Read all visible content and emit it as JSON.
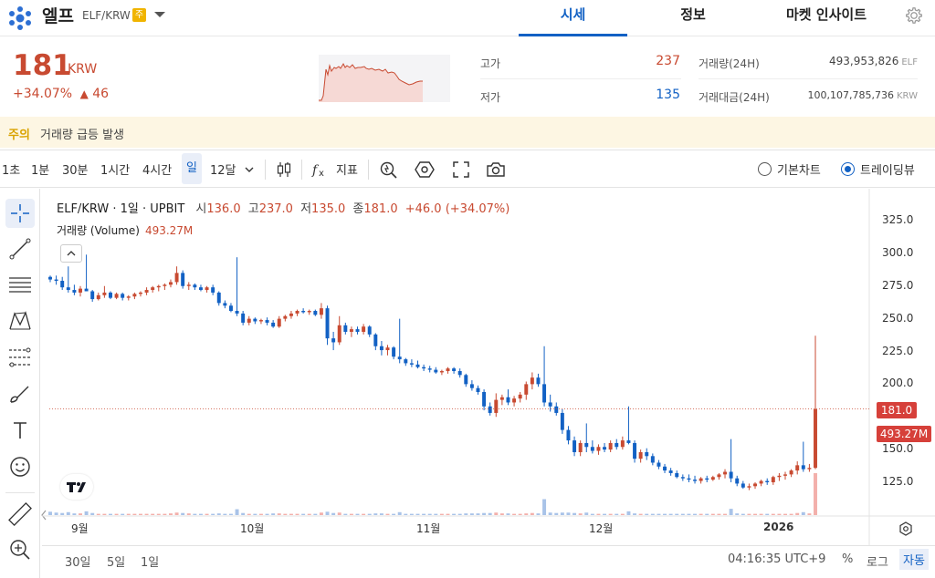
{
  "header": {
    "coin_name": "엘프",
    "pair": "ELF/KRW",
    "warning_badge": "주",
    "tabs": [
      {
        "label": "시세",
        "active": true
      },
      {
        "label": "정보",
        "active": false
      },
      {
        "label": "마켓 인사이트",
        "active": false
      }
    ],
    "icons": {
      "logo": "elf-logo-icon",
      "dropdown": "chevron-down-icon",
      "settings": "gear-icon"
    }
  },
  "summary": {
    "price": "181",
    "unit": "KRW",
    "change_pct": "+34.07%",
    "change_abs": "46",
    "change_arrow": "▲",
    "high_label": "고가",
    "high_value": "237",
    "low_label": "저가",
    "low_value": "135",
    "volume_label": "거래량(24H)",
    "volume_value": "493,953,826",
    "volume_unit": "ELF",
    "amount_label": "거래대금(24H)",
    "amount_value": "100,107,785,736",
    "amount_unit": "KRW",
    "colors": {
      "up": "#c84a31",
      "down": "#1261c4"
    }
  },
  "alert": {
    "tag": "주의",
    "text": "거래량 급등 발생"
  },
  "toolbar": {
    "intervals": [
      "1초",
      "1분",
      "30분",
      "1시간",
      "4시간",
      "일",
      "12달"
    ],
    "active_interval": "일",
    "indicator_label": "지표",
    "view_basic_label": "기본차트",
    "view_trading_label": "트레이딩뷰",
    "selected_view": "트레이딩뷰"
  },
  "drawing_tools": [
    "crosshair-icon",
    "trend-line-icon",
    "horizontal-lines-icon",
    "pattern-icon",
    "fib-icon",
    "brush-icon",
    "text-icon",
    "emoji-icon",
    "ruler-icon",
    "zoom-in-icon"
  ],
  "chart_data": {
    "type": "candlestick",
    "legend": {
      "symbol": "ELF/KRW · 1일 · UPBIT",
      "open_label": "시",
      "open": "136.0",
      "high_label": "고",
      "high": "237.0",
      "low_label": "저",
      "low": "135.0",
      "close_label": "종",
      "close": "181.0",
      "change": "+46.0 (+34.07%)"
    },
    "volume_legend": {
      "label": "거래량 (Volume)",
      "value": "493.27M"
    },
    "y_ticks": [
      "325.0",
      "300.0",
      "275.0",
      "250.0",
      "225.0",
      "200.0",
      "150.0",
      "125.0"
    ],
    "y_range": [
      105,
      332
    ],
    "x_ticks": [
      "9월",
      "10월",
      "11월",
      "12월",
      "2026"
    ],
    "last_price_tag": "181.0",
    "volume_tag": "493.27M",
    "candles": [
      [
        282,
        283,
        278,
        280
      ],
      [
        280,
        283,
        276,
        279
      ],
      [
        279,
        282,
        272,
        274
      ],
      [
        274,
        290,
        270,
        272
      ],
      [
        272,
        276,
        268,
        270
      ],
      [
        270,
        275,
        267,
        273
      ],
      [
        273,
        299,
        271,
        271
      ],
      [
        271,
        272,
        263,
        265
      ],
      [
        265,
        270,
        264,
        268
      ],
      [
        268,
        275,
        266,
        270
      ],
      [
        270,
        271,
        265,
        266
      ],
      [
        266,
        270,
        265,
        269
      ],
      [
        269,
        270,
        264,
        266
      ],
      [
        266,
        268,
        264,
        267
      ],
      [
        267,
        270,
        265,
        269
      ],
      [
        269,
        271,
        267,
        270
      ],
      [
        270,
        274,
        268,
        272
      ],
      [
        272,
        275,
        270,
        274
      ],
      [
        274,
        276,
        271,
        275
      ],
      [
        275,
        277,
        272,
        276
      ],
      [
        276,
        280,
        274,
        278
      ],
      [
        278,
        290,
        276,
        285
      ],
      [
        285,
        287,
        273,
        275
      ],
      [
        275,
        278,
        272,
        276
      ],
      [
        276,
        277,
        272,
        274
      ],
      [
        274,
        276,
        271,
        272
      ],
      [
        272,
        275,
        270,
        274
      ],
      [
        274,
        276,
        268,
        270
      ],
      [
        270,
        271,
        260,
        262
      ],
      [
        262,
        264,
        258,
        260
      ],
      [
        260,
        262,
        255,
        256
      ],
      [
        256,
        297,
        252,
        254
      ],
      [
        254,
        256,
        245,
        247
      ],
      [
        247,
        252,
        245,
        250
      ],
      [
        250,
        251,
        246,
        248
      ],
      [
        248,
        250,
        246,
        249
      ],
      [
        249,
        251,
        245,
        247
      ],
      [
        247,
        249,
        243,
        244
      ],
      [
        244,
        252,
        243,
        250
      ],
      [
        250,
        253,
        248,
        252
      ],
      [
        252,
        256,
        250,
        254
      ],
      [
        254,
        257,
        252,
        256
      ],
      [
        256,
        258,
        254,
        255
      ],
      [
        255,
        257,
        253,
        256
      ],
      [
        256,
        257,
        252,
        253
      ],
      [
        253,
        262,
        250,
        258
      ],
      [
        258,
        260,
        230,
        235
      ],
      [
        235,
        240,
        226,
        232
      ],
      [
        232,
        252,
        230,
        245
      ],
      [
        245,
        247,
        238,
        240
      ],
      [
        240,
        244,
        236,
        242
      ],
      [
        242,
        244,
        238,
        240
      ],
      [
        240,
        246,
        238,
        244
      ],
      [
        244,
        245,
        236,
        238
      ],
      [
        238,
        239,
        226,
        229
      ],
      [
        229,
        233,
        222,
        226
      ],
      [
        226,
        230,
        222,
        228
      ],
      [
        228,
        229,
        219,
        221
      ],
      [
        221,
        250,
        216,
        219
      ],
      [
        219,
        220,
        214,
        216
      ],
      [
        216,
        219,
        213,
        215
      ],
      [
        215,
        218,
        212,
        213
      ],
      [
        213,
        215,
        210,
        212
      ],
      [
        212,
        214,
        209,
        211
      ],
      [
        211,
        213,
        208,
        209
      ],
      [
        209,
        211,
        207,
        210
      ],
      [
        210,
        213,
        208,
        212
      ],
      [
        212,
        213,
        208,
        210
      ],
      [
        210,
        212,
        205,
        207
      ],
      [
        207,
        208,
        198,
        200
      ],
      [
        200,
        203,
        195,
        197
      ],
      [
        197,
        199,
        192,
        194
      ],
      [
        194,
        196,
        180,
        183
      ],
      [
        183,
        186,
        176,
        178
      ],
      [
        178,
        193,
        175,
        188
      ],
      [
        188,
        192,
        184,
        190
      ],
      [
        190,
        196,
        184,
        186
      ],
      [
        186,
        191,
        183,
        189
      ],
      [
        189,
        194,
        186,
        192
      ],
      [
        192,
        202,
        188,
        200
      ],
      [
        200,
        209,
        196,
        205
      ],
      [
        205,
        208,
        198,
        200
      ],
      [
        200,
        229,
        183,
        186
      ],
      [
        186,
        192,
        179,
        183
      ],
      [
        183,
        186,
        176,
        178
      ],
      [
        178,
        181,
        162,
        165
      ],
      [
        165,
        168,
        154,
        157
      ],
      [
        157,
        160,
        145,
        148
      ],
      [
        148,
        157,
        145,
        155
      ],
      [
        155,
        170,
        148,
        152
      ],
      [
        152,
        157,
        147,
        149
      ],
      [
        149,
        154,
        146,
        152
      ],
      [
        152,
        155,
        148,
        150
      ],
      [
        150,
        157,
        148,
        155
      ],
      [
        155,
        158,
        150,
        152
      ],
      [
        152,
        160,
        150,
        157
      ],
      [
        157,
        183,
        154,
        155
      ],
      [
        155,
        157,
        140,
        143
      ],
      [
        143,
        150,
        140,
        148
      ],
      [
        148,
        151,
        142,
        145
      ],
      [
        145,
        147,
        138,
        140
      ],
      [
        140,
        142,
        135,
        137
      ],
      [
        137,
        139,
        132,
        134
      ],
      [
        134,
        136,
        130,
        132
      ],
      [
        132,
        134,
        128,
        129
      ],
      [
        129,
        131,
        126,
        128
      ],
      [
        128,
        131,
        125,
        127
      ],
      [
        127,
        130,
        124,
        126
      ],
      [
        126,
        129,
        124,
        128
      ],
      [
        128,
        130,
        125,
        127
      ],
      [
        127,
        130,
        126,
        129
      ],
      [
        129,
        132,
        127,
        131
      ],
      [
        131,
        135,
        128,
        133
      ],
      [
        133,
        158,
        125,
        128
      ],
      [
        128,
        130,
        122,
        124
      ],
      [
        124,
        126,
        120,
        121
      ],
      [
        121,
        124,
        119,
        122
      ],
      [
        122,
        125,
        120,
        124
      ],
      [
        124,
        127,
        122,
        126
      ],
      [
        126,
        128,
        123,
        125
      ],
      [
        125,
        130,
        123,
        129
      ],
      [
        129,
        132,
        126,
        130
      ],
      [
        130,
        133,
        127,
        131
      ],
      [
        131,
        135,
        129,
        134
      ],
      [
        134,
        141,
        131,
        138
      ],
      [
        138,
        156,
        133,
        135
      ],
      [
        135,
        139,
        133,
        136
      ],
      [
        136,
        237,
        135,
        181
      ]
    ],
    "volumes": [
      8,
      6,
      5,
      7,
      4,
      4,
      9,
      5,
      3,
      3,
      3,
      3,
      3,
      3,
      3,
      3,
      3,
      3,
      3,
      3,
      4,
      6,
      5,
      4,
      3,
      3,
      3,
      3,
      4,
      3,
      3,
      14,
      5,
      3,
      3,
      3,
      3,
      4,
      4,
      3,
      3,
      3,
      3,
      3,
      3,
      6,
      8,
      5,
      6,
      3,
      3,
      3,
      3,
      3,
      4,
      4,
      3,
      3,
      7,
      3,
      3,
      3,
      3,
      3,
      3,
      3,
      3,
      3,
      3,
      4,
      4,
      4,
      5,
      5,
      6,
      4,
      4,
      3,
      3,
      4,
      5,
      4,
      38,
      6,
      5,
      6,
      6,
      5,
      4,
      6,
      3,
      3,
      3,
      3,
      3,
      3,
      9,
      4,
      3,
      3,
      3,
      3,
      3,
      3,
      3,
      3,
      3,
      3,
      3,
      3,
      3,
      3,
      3,
      15,
      4,
      3,
      3,
      3,
      3,
      3,
      3,
      3,
      3,
      3,
      5,
      7,
      4,
      100
    ]
  },
  "footer": {
    "ranges": [
      "30일",
      "5일",
      "1일"
    ],
    "clock": "04:16:35 UTC+9",
    "options": [
      "%",
      "로그",
      "자동"
    ],
    "active_option": "자동"
  }
}
